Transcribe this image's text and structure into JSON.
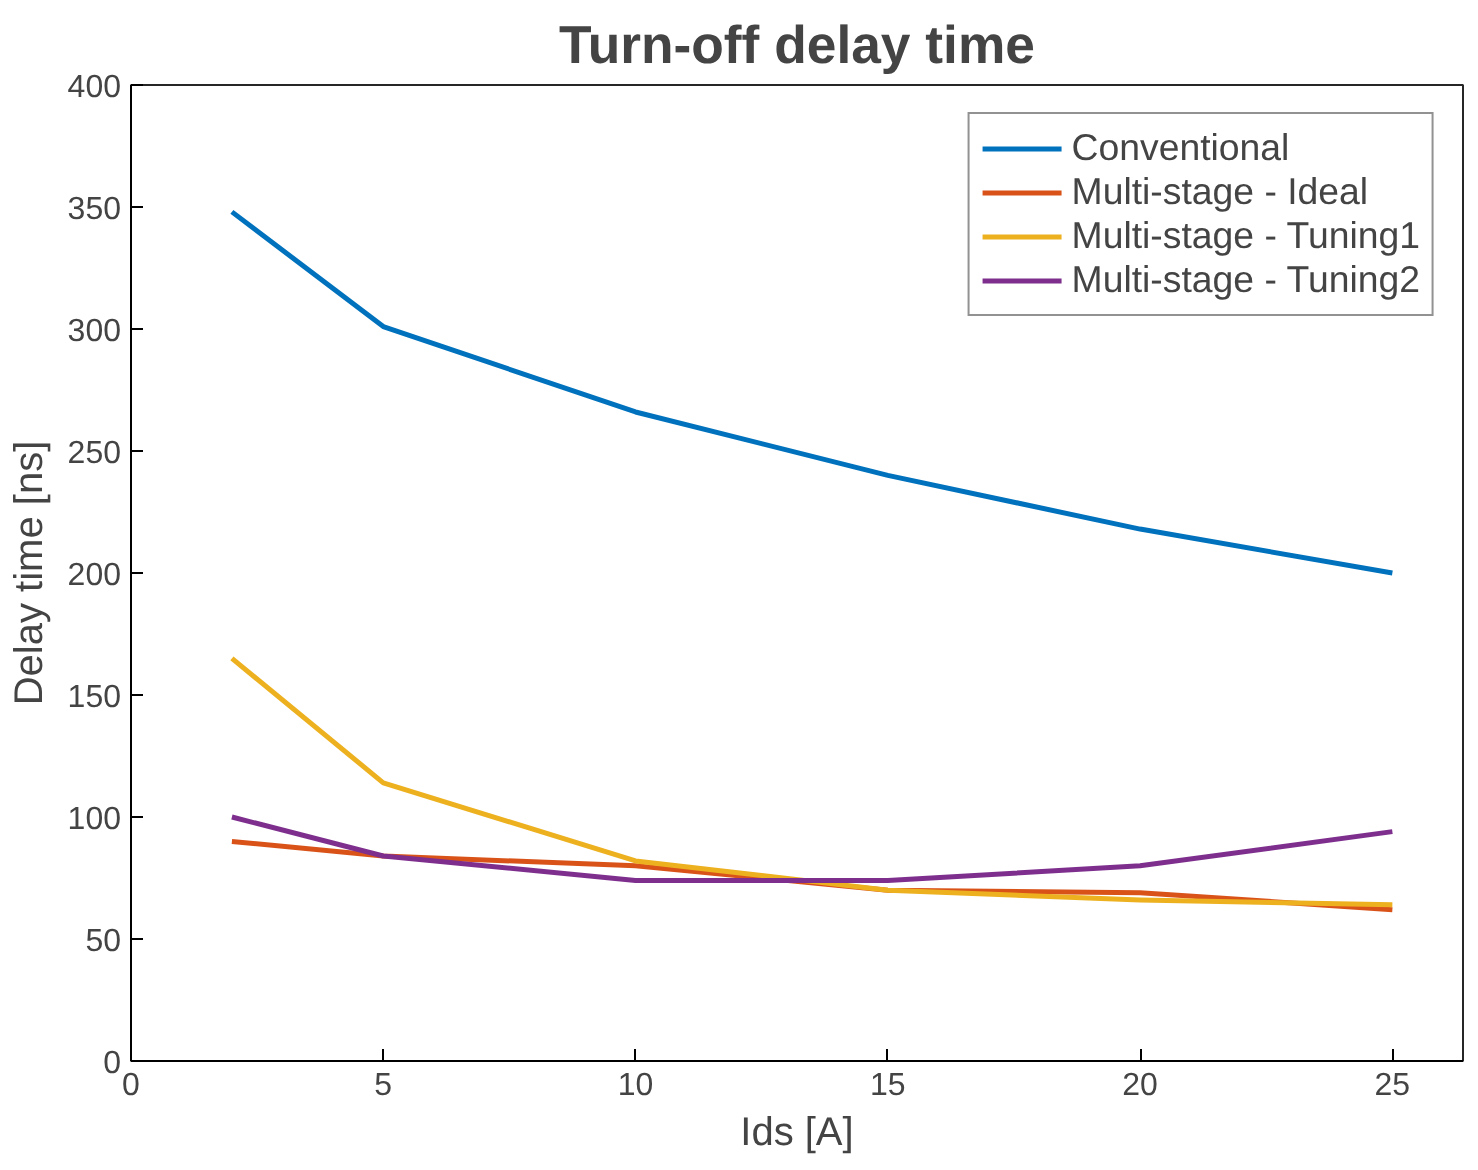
{
  "chart_data": {
    "type": "line",
    "title": "Turn-off delay time",
    "xlabel": "Ids [A]",
    "ylabel": "Delay time [ns]",
    "x": [
      2,
      5,
      10,
      15,
      20,
      25
    ],
    "series": [
      {
        "name": "Conventional",
        "color": "#0072bd",
        "values": [
          348,
          301,
          266,
          240,
          218,
          200
        ]
      },
      {
        "name": "Multi-stage - Ideal",
        "color": "#d95319",
        "values": [
          90,
          84,
          80,
          70,
          69,
          62
        ]
      },
      {
        "name": "Multi-stage - Tuning1",
        "color": "#edb120",
        "values": [
          165,
          114,
          82,
          70,
          66,
          64
        ]
      },
      {
        "name": "Multi-stage - Tuning2",
        "color": "#7e2f8e",
        "values": [
          100,
          84,
          74,
          74,
          80,
          94
        ]
      }
    ],
    "xlim": [
      0,
      26.4
    ],
    "xticks": [
      0,
      5,
      10,
      15,
      20,
      25
    ],
    "ylim": [
      0,
      400
    ],
    "yticks": [
      0,
      50,
      100,
      150,
      200,
      250,
      300,
      350,
      400
    ],
    "grid": false,
    "legend": "top right",
    "marker": "none",
    "line_style": "solid"
  }
}
